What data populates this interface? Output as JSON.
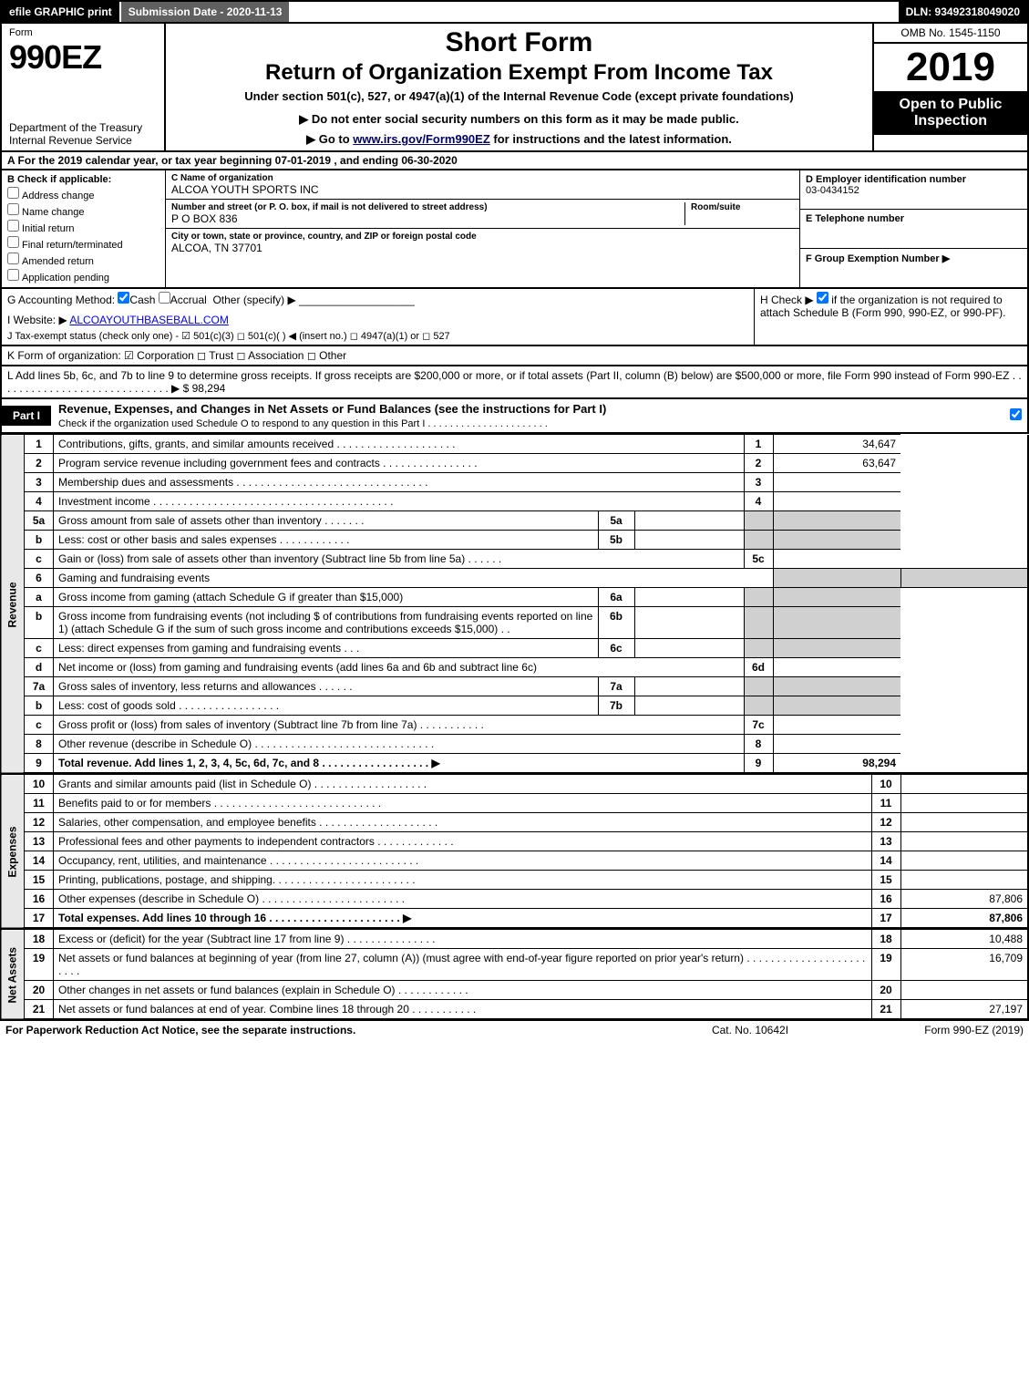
{
  "topbar": {
    "efile": "efile GRAPHIC print",
    "subdate_label": "Submission Date - 2020-11-13",
    "dln": "DLN: 93492318049020"
  },
  "header": {
    "form_word": "Form",
    "form_no": "990EZ",
    "dept": "Department of the Treasury Internal Revenue Service",
    "title1": "Short Form",
    "title2": "Return of Organization Exempt From Income Tax",
    "subtitle": "Under section 501(c), 527, or 4947(a)(1) of the Internal Revenue Code (except private foundations)",
    "warn": "▶ Do not enter social security numbers on this form as it may be made public.",
    "goto_pre": "▶ Go to ",
    "goto_link": "www.irs.gov/Form990EZ",
    "goto_post": " for instructions and the latest information.",
    "omb": "OMB No. 1545-1150",
    "year": "2019",
    "inspection": "Open to Public Inspection"
  },
  "period": "A For the 2019 calendar year, or tax year beginning 07-01-2019 , and ending 06-30-2020",
  "boxB": {
    "label": "B Check if applicable:",
    "opts": [
      "Address change",
      "Name change",
      "Initial return",
      "Final return/terminated",
      "Amended return",
      "Application pending"
    ]
  },
  "boxC": {
    "name_lbl": "C Name of organization",
    "name": "ALCOA YOUTH SPORTS INC",
    "addr_lbl": "Number and street (or P. O. box, if mail is not delivered to street address)",
    "addr": "P O BOX 836",
    "room_lbl": "Room/suite",
    "city_lbl": "City or town, state or province, country, and ZIP or foreign postal code",
    "city": "ALCOA, TN  37701"
  },
  "boxD": {
    "lbl": "D Employer identification number",
    "val": "03-0434152"
  },
  "boxE": {
    "lbl": "E Telephone number",
    "val": ""
  },
  "boxF": {
    "lbl": "F Group Exemption Number  ▶",
    "val": ""
  },
  "lineG": {
    "lbl": "G Accounting Method:",
    "cash": "Cash",
    "accrual": "Accrual",
    "other": "Other (specify) ▶"
  },
  "lineH": {
    "lbl": "H  Check ▶",
    "txt": "if the organization is not required to attach Schedule B (Form 990, 990-EZ, or 990-PF)."
  },
  "lineI": {
    "lbl": "I Website: ▶",
    "val": "ALCOAYOUTHBASEBALL.COM"
  },
  "lineJ": "J Tax-exempt status (check only one) -  ☑ 501(c)(3)  ◻ 501(c)( )  ◀ (insert no.)  ◻ 4947(a)(1) or  ◻ 527",
  "lineK": "K Form of organization:  ☑ Corporation  ◻ Trust  ◻ Association  ◻ Other",
  "lineL": {
    "txt": "L Add lines 5b, 6c, and 7b to line 9 to determine gross receipts. If gross receipts are $200,000 or more, or if total assets (Part II, column (B) below) are $500,000 or more, file Form 990 instead of Form 990-EZ . . . . . . . . . . . . . . . . . . . . . . . . . . . . .  ▶",
    "amt": "$ 98,294"
  },
  "part1": {
    "tag": "Part I",
    "title": "Revenue, Expenses, and Changes in Net Assets or Fund Balances (see the instructions for Part I)",
    "check": "Check if the organization used Schedule O to respond to any question in this Part I . . . . . . . . . . . . . . . . . . . . . ."
  },
  "sideLabels": {
    "rev": "Revenue",
    "exp": "Expenses",
    "na": "Net Assets"
  },
  "rows": [
    {
      "n": "1",
      "d": "Contributions, gifts, grants, and similar amounts received . . . . . . . . . . . . . . . . . . . .",
      "rn": "1",
      "amt": "34,647"
    },
    {
      "n": "2",
      "d": "Program service revenue including government fees and contracts . . . . . . . . . . . . . . . .",
      "rn": "2",
      "amt": "63,647"
    },
    {
      "n": "3",
      "d": "Membership dues and assessments . . . . . . . . . . . . . . . . . . . . . . . . . . . . . . . .",
      "rn": "3",
      "amt": ""
    },
    {
      "n": "4",
      "d": "Investment income . . . . . . . . . . . . . . . . . . . . . . . . . . . . . . . . . . . . . . . .",
      "rn": "4",
      "amt": ""
    },
    {
      "n": "5a",
      "d": "Gross amount from sale of assets other than inventory . . . . . . .",
      "sub": "5a",
      "subv": "",
      "grey": true
    },
    {
      "n": "b",
      "d": "Less: cost or other basis and sales expenses . . . . . . . . . . . .",
      "sub": "5b",
      "subv": "",
      "grey": true
    },
    {
      "n": "c",
      "d": "Gain or (loss) from sale of assets other than inventory (Subtract line 5b from line 5a) . . . . . .",
      "rn": "5c",
      "amt": ""
    },
    {
      "n": "6",
      "d": "Gaming and fundraising events",
      "plain": true
    },
    {
      "n": "a",
      "d": "Gross income from gaming (attach Schedule G if greater than $15,000)",
      "sub": "6a",
      "subv": "",
      "grey": true
    },
    {
      "n": "b",
      "d": "Gross income from fundraising events (not including $                     of contributions from fundraising events reported on line 1) (attach Schedule G if the sum of such gross income and contributions exceeds $15,000)     . .",
      "sub": "6b",
      "subv": "",
      "grey": true
    },
    {
      "n": "c",
      "d": "Less: direct expenses from gaming and fundraising events      . . .",
      "sub": "6c",
      "subv": "",
      "grey": true
    },
    {
      "n": "d",
      "d": "Net income or (loss) from gaming and fundraising events (add lines 6a and 6b and subtract line 6c)",
      "rn": "6d",
      "amt": ""
    },
    {
      "n": "7a",
      "d": "Gross sales of inventory, less returns and allowances . . . . . .",
      "sub": "7a",
      "subv": "",
      "grey": true
    },
    {
      "n": "b",
      "d": "Less: cost of goods sold     . . . . . . . . . . . . . . . . .",
      "sub": "7b",
      "subv": "",
      "grey": true
    },
    {
      "n": "c",
      "d": "Gross profit or (loss) from sales of inventory (Subtract line 7b from line 7a) . . . . . . . . . . .",
      "rn": "7c",
      "amt": ""
    },
    {
      "n": "8",
      "d": "Other revenue (describe in Schedule O) . . . . . . . . . . . . . . . . . . . . . . . . . . . . . .",
      "rn": "8",
      "amt": ""
    },
    {
      "n": "9",
      "d": "Total revenue. Add lines 1, 2, 3, 4, 5c, 6d, 7c, and 8  . . . . . . . . . . . . . . . . . .  ▶",
      "rn": "9",
      "amt": "98,294",
      "bold": true
    }
  ],
  "expRows": [
    {
      "n": "10",
      "d": "Grants and similar amounts paid (list in Schedule O) . . . . . . . . . . . . . . . . . . .",
      "rn": "10",
      "amt": ""
    },
    {
      "n": "11",
      "d": "Benefits paid to or for members    . . . . . . . . . . . . . . . . . . . . . . . . . . . .",
      "rn": "11",
      "amt": ""
    },
    {
      "n": "12",
      "d": "Salaries, other compensation, and employee benefits . . . . . . . . . . . . . . . . . . . .",
      "rn": "12",
      "amt": ""
    },
    {
      "n": "13",
      "d": "Professional fees and other payments to independent contractors . . . . . . . . . . . . .",
      "rn": "13",
      "amt": ""
    },
    {
      "n": "14",
      "d": "Occupancy, rent, utilities, and maintenance . . . . . . . . . . . . . . . . . . . . . . . . .",
      "rn": "14",
      "amt": ""
    },
    {
      "n": "15",
      "d": "Printing, publications, postage, and shipping. . . . . . . . . . . . . . . . . . . . . . . .",
      "rn": "15",
      "amt": ""
    },
    {
      "n": "16",
      "d": "Other expenses (describe in Schedule O)     . . . . . . . . . . . . . . . . . . . . . . . .",
      "rn": "16",
      "amt": "87,806"
    },
    {
      "n": "17",
      "d": "Total expenses. Add lines 10 through 16    . . . . . . . . . . . . . . . . . . . . . .  ▶",
      "rn": "17",
      "amt": "87,806",
      "bold": true
    }
  ],
  "naRows": [
    {
      "n": "18",
      "d": "Excess or (deficit) for the year (Subtract line 17 from line 9)        . . . . . . . . . . . . . . .",
      "rn": "18",
      "amt": "10,488"
    },
    {
      "n": "19",
      "d": "Net assets or fund balances at beginning of year (from line 27, column (A)) (must agree with end-of-year figure reported on prior year's return) . . . . . . . . . . . . . . . . . . . . . . . .",
      "rn": "19",
      "amt": "16,709"
    },
    {
      "n": "20",
      "d": "Other changes in net assets or fund balances (explain in Schedule O) . . . . . . . . . . . .",
      "rn": "20",
      "amt": ""
    },
    {
      "n": "21",
      "d": "Net assets or fund balances at end of year. Combine lines 18 through 20 . . . . . . . . . . .",
      "rn": "21",
      "amt": "27,197"
    }
  ],
  "footer": {
    "l": "For Paperwork Reduction Act Notice, see the separate instructions.",
    "c": "Cat. No. 10642I",
    "r": "Form 990-EZ (2019)"
  },
  "colors": {
    "black": "#000000",
    "white": "#ffffff",
    "grey": "#d0d0d0",
    "sidegrey": "#e8e8e8",
    "darkgrey": "#606060"
  }
}
